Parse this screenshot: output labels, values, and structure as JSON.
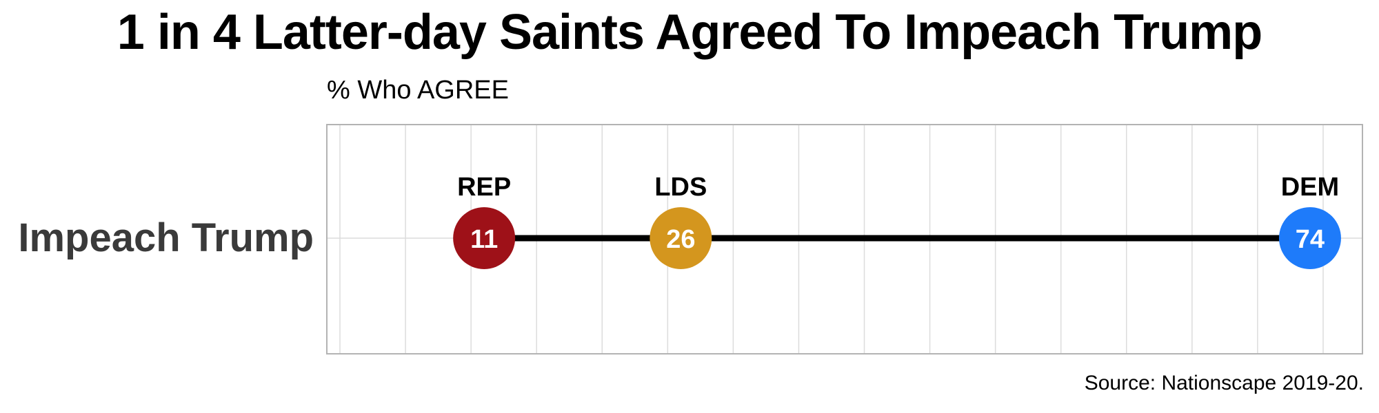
{
  "chart_data": {
    "type": "dumbbell",
    "title": "1 in 4 Latter-day Saints Agreed To Impeach Trump",
    "subtitle": "% Who AGREE",
    "caption": "Source: Nationscape 2019-20.",
    "categories": [
      "Impeach Trump"
    ],
    "xlim": [
      -1,
      78
    ],
    "grid": true,
    "series": [
      {
        "name": "REP",
        "values": [
          11
        ],
        "color": "#9E1118"
      },
      {
        "name": "LDS",
        "values": [
          26
        ],
        "color": "#D4961E"
      },
      {
        "name": "DEM",
        "values": [
          74
        ],
        "color": "#1E7BFA"
      }
    ]
  }
}
